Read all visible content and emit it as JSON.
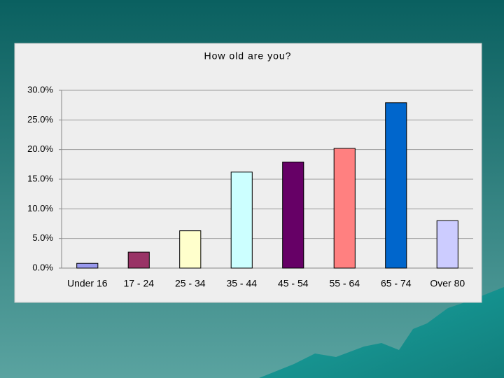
{
  "chart_data": {
    "type": "bar",
    "title": "How old are you?",
    "categories": [
      "Under 16",
      "17 - 24",
      "25 - 34",
      "35 - 44",
      "45 - 54",
      "55 - 64",
      "65 - 74",
      "Over 80"
    ],
    "values": [
      0.8,
      2.7,
      6.3,
      16.2,
      17.9,
      20.2,
      27.9,
      8.0
    ],
    "colors": [
      "#9999ee",
      "#993366",
      "#ffffcc",
      "#ccffff",
      "#660066",
      "#ff8080",
      "#0066cc",
      "#ccccff"
    ],
    "ylim": [
      0,
      30
    ],
    "yticks": [
      {
        "value": 0,
        "label": "0.0%"
      },
      {
        "value": 5,
        "label": "5.0%"
      },
      {
        "value": 10,
        "label": "10.0%"
      },
      {
        "value": 15,
        "label": "15.0%"
      },
      {
        "value": 20,
        "label": "20.0%"
      },
      {
        "value": 25,
        "label": "25.0%"
      },
      {
        "value": 30,
        "label": "30.0%"
      }
    ],
    "grid": true
  }
}
